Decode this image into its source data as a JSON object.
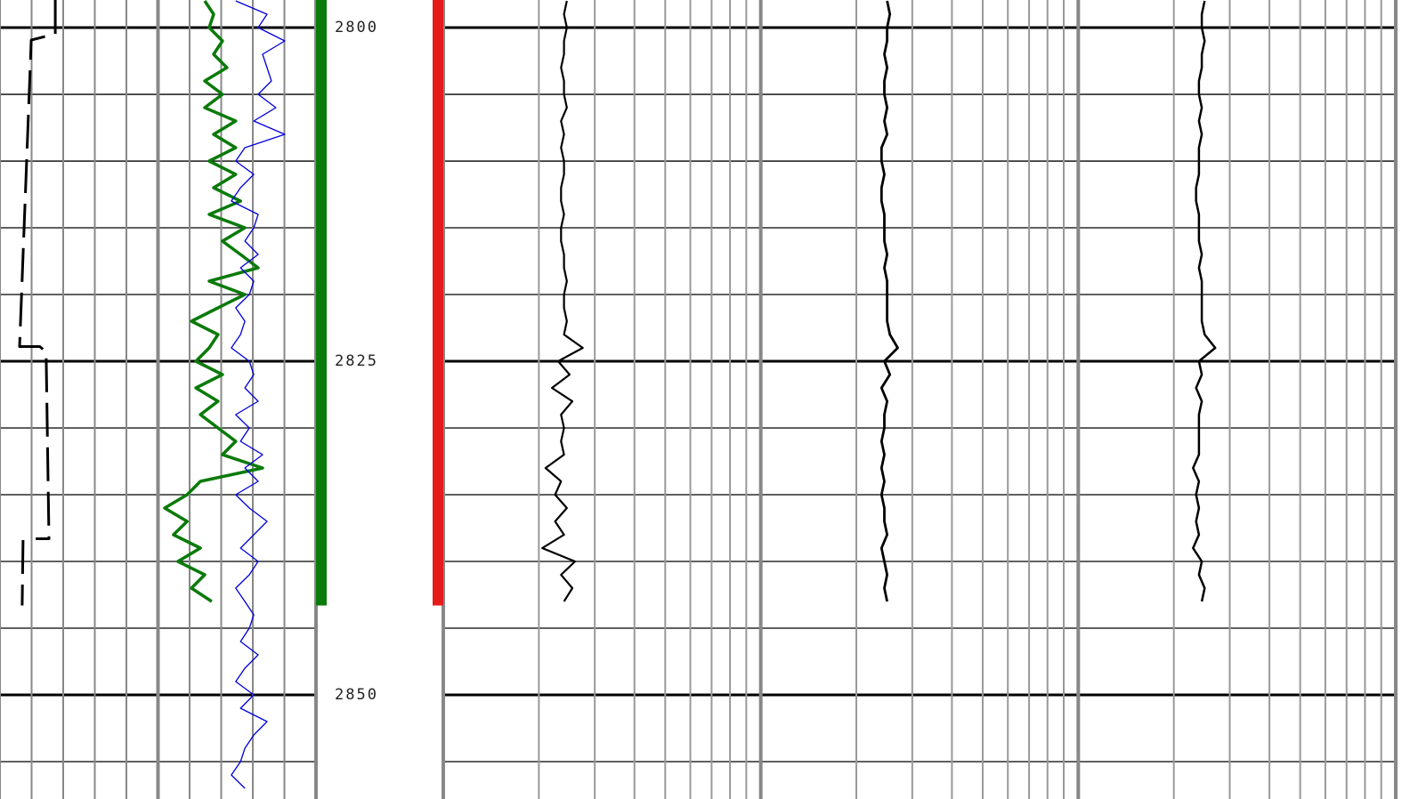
{
  "chart_data": {
    "type": "well-log",
    "ylim": [
      2797.93,
      2857.8
    ],
    "yticks": [
      2800,
      2825,
      2850
    ],
    "minor_grid_divisions": 5,
    "depths": [
      2798,
      2799,
      2800,
      2801,
      2802,
      2803,
      2804,
      2805,
      2806,
      2807,
      2808,
      2809,
      2810,
      2811,
      2812,
      2813,
      2814,
      2815,
      2816,
      2817,
      2818,
      2819,
      2820,
      2821,
      2822,
      2823,
      2824,
      2825,
      2826,
      2827,
      2828,
      2829,
      2830,
      2831,
      2832,
      2833,
      2834,
      2835,
      2836,
      2837,
      2838,
      2839,
      2840,
      2841,
      2842,
      2843,
      2844,
      2845,
      2846,
      2847,
      2848,
      2849,
      2850,
      2851,
      2852,
      2853,
      2854,
      2855,
      2856,
      2857
    ],
    "intervals": [
      {
        "color": "#0a7a0a",
        "top": 2797.93,
        "base": 2843.3,
        "side": "left"
      },
      {
        "color": "#e61c1c",
        "top": 2797.93,
        "base": 2843.3,
        "side": "right"
      }
    ],
    "tracks": [
      {
        "scale": "linear",
        "xlim": [
          0,
          100
        ],
        "xticks": [
          0,
          10,
          20,
          30,
          40,
          50,
          60,
          70,
          80,
          90,
          100
        ],
        "major_xticks": [
          50
        ],
        "series": [
          {
            "color": "#000000",
            "dashed": true,
            "width": 3,
            "depths": [
              2797.93,
              2800.47,
              2800.93,
              2823.9,
              2823.9,
              2824.3,
              2838.3,
              2838.3,
              null,
              2838.4,
              2843.3
            ],
            "values": [
              17.5,
              17.5,
              9.9,
              6.2,
              12.6,
              14.6,
              15.5,
              11.3,
              null,
              7.3,
              7.0
            ]
          },
          {
            "color": "#0a7a0a",
            "width": 3.5,
            "values": [
              64.8,
              67.6,
              66.2,
              70.4,
              67.6,
              71.8,
              64.8,
              70.4,
              64.8,
              74.6,
              67.6,
              74.6,
              66.2,
              74.6,
              67.6,
              76.1,
              66.2,
              77.5,
              70.4,
              76.1,
              81.7,
              66.2,
              77.5,
              69.0,
              60.6,
              69.0,
              66.2,
              62.0,
              70.4,
              62.0,
              69.0,
              63.4,
              69.0,
              74.6,
              70.4,
              83.1,
              63.4,
              59.2,
              52.1,
              59.2,
              54.9,
              63.4,
              56.3,
              64.8,
              60.6,
              67.0,
              null,
              null,
              null,
              null,
              null,
              null,
              null,
              null,
              null,
              null,
              null,
              null,
              null,
              null
            ]
          },
          {
            "color": "#0000dd",
            "width": 1.3,
            "values": [
              74.6,
              84.5,
              81.7,
              90.1,
              83.1,
              84.5,
              85.9,
              81.7,
              87.3,
              80.3,
              90.1,
              77.5,
              74.6,
              80.3,
              76.1,
              73.2,
              81.7,
              80.3,
              77.5,
              81.7,
              76.1,
              80.3,
              78.9,
              74.6,
              77.5,
              76.1,
              73.2,
              78.9,
              80.3,
              77.5,
              81.7,
              74.6,
              78.9,
              76.1,
              83.1,
              77.5,
              81.7,
              74.6,
              78.9,
              84.5,
              80.3,
              76.1,
              81.7,
              78.9,
              74.6,
              77.5,
              80.3,
              78.9,
              76.1,
              81.7,
              77.5,
              74.6,
              80.3,
              76.1,
              84.5,
              80.3,
              77.5,
              76.1,
              73.2,
              77.5
            ]
          }
        ]
      },
      {
        "scale": "log",
        "xlim": [
          0.2,
          200
        ],
        "xticks": [
          0.2,
          2,
          20,
          200
        ],
        "minor_grid": true,
        "series": [
          {
            "color": "#000000",
            "width": 2.2,
            "values": [
              0.49,
              0.48,
              0.49,
              0.48,
              0.48,
              0.47,
              0.48,
              0.48,
              0.49,
              0.47,
              0.48,
              0.47,
              0.48,
              0.48,
              0.47,
              0.47,
              0.48,
              0.47,
              0.47,
              0.48,
              0.48,
              0.49,
              0.48,
              0.48,
              0.49,
              0.48,
              0.55,
              0.46,
              0.5,
              0.44,
              0.51,
              0.47,
              0.48,
              0.47,
              0.48,
              0.42,
              0.47,
              0.45,
              0.49,
              0.45,
              0.48,
              0.41,
              0.52,
              0.47,
              0.51,
              0.48,
              null,
              null,
              null,
              null,
              null,
              null,
              null,
              null,
              null,
              null,
              null,
              null,
              null,
              null
            ]
          },
          {
            "color": "#000000",
            "width": 2.8,
            "values": [
              5.0,
              5.1,
              5.0,
              5.0,
              4.9,
              5.0,
              4.9,
              4.9,
              5.0,
              4.9,
              5.0,
              4.8,
              4.8,
              4.9,
              4.8,
              4.8,
              4.9,
              4.9,
              4.9,
              5.0,
              4.9,
              5.0,
              5.0,
              5.0,
              5.0,
              5.1,
              5.4,
              4.9,
              5.1,
              4.8,
              5.0,
              4.9,
              4.9,
              4.8,
              4.9,
              4.8,
              4.9,
              4.8,
              4.9,
              4.9,
              5.0,
              4.8,
              4.9,
              5.0,
              4.9,
              5.0,
              null,
              null,
              null,
              null,
              null,
              null,
              null,
              null,
              null,
              null,
              null,
              null,
              null,
              null
            ]
          },
          {
            "color": "#000000",
            "width": 2.5,
            "values": [
              50,
              49,
              49,
              50,
              49,
              49,
              48,
              48,
              49,
              48,
              49,
              48,
              48,
              48,
              47,
              47,
              48,
              48,
              48,
              49,
              48,
              49,
              49,
              49,
              49,
              50,
              54,
              48,
              49,
              47,
              49,
              48,
              48,
              48,
              48,
              46,
              48,
              47,
              48,
              47,
              48,
              46,
              49,
              48,
              50,
              49,
              null,
              null,
              null,
              null,
              null,
              null,
              null,
              null,
              null,
              null,
              null,
              null,
              null,
              null
            ]
          }
        ]
      }
    ]
  }
}
